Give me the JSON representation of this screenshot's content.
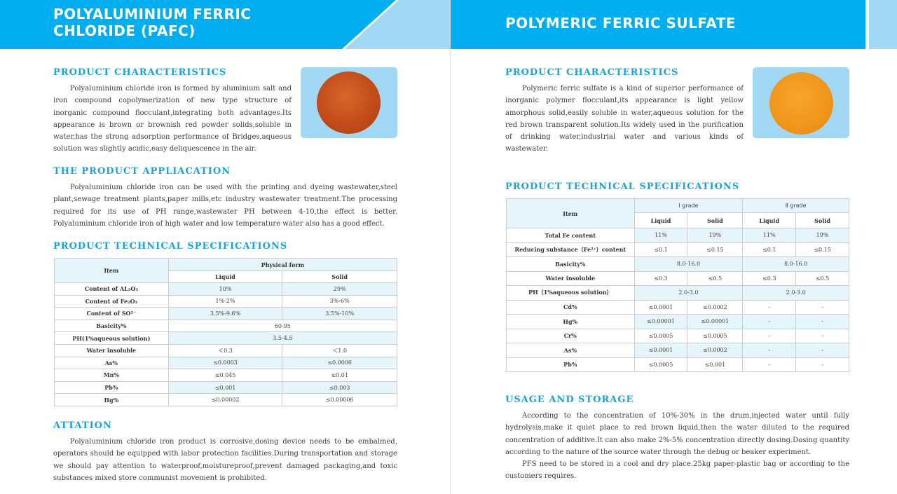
{
  "left": {
    "title_lines": [
      "POLYALUMINIUM FERRIC",
      "CHLORIDE (PAFC)"
    ],
    "characteristics": {
      "heading": "PRODUCT CHARACTERISTICS",
      "text": "Polyaluminium chloride iron is formed by aluminium salt and iron compound copolymerization of new type structure of inorganic compound flocculant,integrating both advantages.Its appearance is brown or brownish red powder solids,soluble in water,has the strong adsorption performance of Bridges,aqueous solution was slightly acidic,easy deliquescence in the air."
    },
    "application": {
      "heading": "THE PRODUCT APPLIACATION",
      "text": "Polyaluminium chloride iron can be used with the printing and dyeing wastewater,steel plant,sewage treatment plants,paper mills,etc industry wastewater treatment.The processing required for its use of PH range,wastewater PH between 4-10,the effect is better. Polyaluminium chloride iron of high water and low temperature water also has a good effect."
    },
    "specs": {
      "heading": "PRODUCT TECHNICAL SPECIFICATIONS",
      "item_header": "Item",
      "group_header": "Physical form",
      "cols": [
        "Liquid",
        "Solid"
      ],
      "rows": [
        {
          "item": "Content of AL₂O₃",
          "values": [
            "10%",
            "29%"
          ]
        },
        {
          "item": "Content of Fe₂O₃",
          "values": [
            "1%-2%",
            "3%-6%"
          ]
        },
        {
          "item": "Content of SO²⁻",
          "values": [
            "3.5%-9.6%",
            "3.5%-10%"
          ]
        },
        {
          "item": "Basicity%",
          "merged": "60-95"
        },
        {
          "item": "PH(1%aqueous solution)",
          "merged": "3.5-4.5"
        },
        {
          "item": "Water insoluble",
          "values": [
            "＜0.3",
            "＜1.0"
          ]
        },
        {
          "item": "As%",
          "values": [
            "≤0.0003",
            "≤0.0006"
          ]
        },
        {
          "item": "Mn%",
          "values": [
            "≤0.045",
            "≤0.01"
          ]
        },
        {
          "item": "Pb%",
          "values": [
            "≤0.001",
            "≤0.003"
          ]
        },
        {
          "item": "Hg%",
          "values": [
            "≤0.00002",
            "≤0.00006"
          ]
        }
      ]
    },
    "attation": {
      "heading": "ATTATION",
      "text": "Polyaluminium chloride iron product is corrosive,dosing device needs to be embalmed, operators should be equipped with labor protection facilities.During transportation and storage we should pay attention to waterproof,moistureproof,prevent damaged packaging,and toxic substances mixed store communist movement is prohibited."
    }
  },
  "right": {
    "title": "POLYMERIC FERRIC SULFATE",
    "characteristics": {
      "heading": "PRODUCT CHARACTERISTICS",
      "text": "Polymeric ferric sulfate is a kind of superior performance of inorganic polymer flocculant,its appearance is light yellow amorphous solid,easily soluble in water,aqueous solution for the red brown transparent solution.Its widely used in the purification of drinking water,industrial water and various kinds of wastewater."
    },
    "specs": {
      "heading": "PRODUCT TECHNICAL SPECIFICATIONS",
      "item_header": "Item",
      "groups": [
        "Ⅰ grade",
        "Ⅱ grade"
      ],
      "cols": [
        "Liquid",
        "Solid",
        "Liquid",
        "Solid"
      ],
      "rows": [
        {
          "item": "Total Fe content",
          "values": [
            "11%",
            "19%",
            "11%",
            "19%"
          ]
        },
        {
          "item": "Reducing substance（Fe²⁺）content",
          "values": [
            "≤0.1",
            "≤0.15",
            "≤0.1",
            "≤0.15"
          ]
        },
        {
          "item": "Basicity%",
          "merged": [
            "8.0-16.0",
            "8.0-16.0"
          ]
        },
        {
          "item": "Water insoluble",
          "values": [
            "≤0.3",
            "≤0.5",
            "≤0.3",
            "≤0.5"
          ]
        },
        {
          "item": "PH（1%aqueous solution）",
          "merged": [
            "2.0-3.0",
            "2.0-3.0"
          ]
        },
        {
          "item": "Cd%",
          "values": [
            "≤0.0001",
            "≤0.0002",
            "-",
            "-"
          ]
        },
        {
          "item": "Hg%",
          "values": [
            "≤0.00001",
            "≤0.00001",
            "-",
            "-"
          ]
        },
        {
          "item": "Cr%",
          "values": [
            "≤0.0005",
            "≤0.0005",
            "-",
            "-"
          ]
        },
        {
          "item": "As%",
          "values": [
            "≤0.0001",
            "≤0.0002",
            "-",
            "-"
          ]
        },
        {
          "item": "Pb%",
          "values": [
            "≤0.0005",
            "≤0.001",
            "-",
            "-"
          ]
        }
      ]
    },
    "usage": {
      "heading": "USAGE AND STORAGE",
      "paragraphs": [
        "According to the concentration of 10%-30% in the drum,injected water until fully hydrolysis,make it quiet place to red brown liquid,then the water diluted to the required concentration of additive.It can also make 2%-5% concentration directly dosing.Dosing quantity according to the nature of the source water through the debug or beaker experiment.",
        "PFS need to be stored in a cool and dry place.25kg paper-plastic bag or according to the customers requires."
      ]
    }
  },
  "colors": {
    "header_blue": "#00aeef",
    "header_light": "#a3d8f4",
    "heading_blue": "#1aa3dc",
    "pafc_powder": "#c9501c",
    "pfs_powder": "#f29a1e"
  }
}
